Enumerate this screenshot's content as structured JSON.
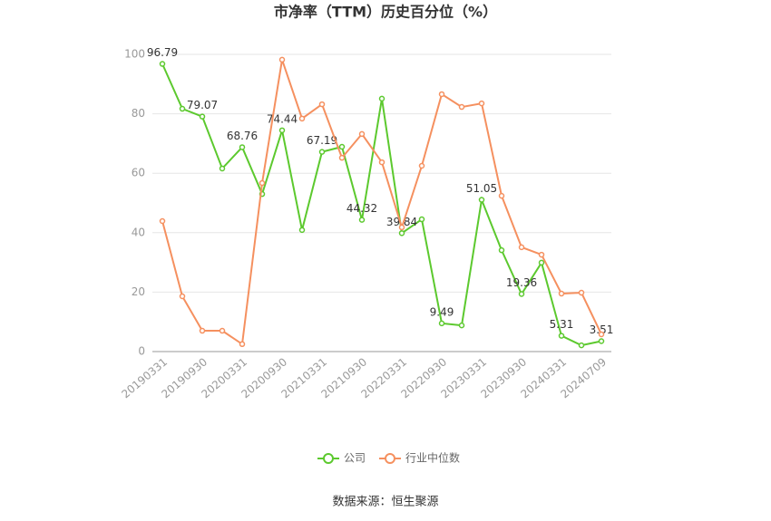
{
  "chart_data": {
    "type": "line",
    "title": "市净率（TTM）历史百分位（%）",
    "categories": [
      "20190331",
      null,
      "20190930",
      null,
      "20200331",
      null,
      "20200930",
      null,
      "20210331",
      null,
      "20210930",
      null,
      "20220331",
      null,
      "20220930",
      null,
      "20230331",
      null,
      "20230930",
      null,
      "20240331",
      null,
      "20240709"
    ],
    "series": [
      {
        "name": "公司",
        "color": "#5cc92e",
        "values": [
          96.79,
          81.7,
          79.07,
          61.6,
          68.76,
          53.0,
          74.44,
          40.9,
          67.19,
          68.9,
          44.32,
          85.1,
          39.84,
          44.5,
          9.49,
          8.8,
          51.05,
          34.1,
          19.36,
          29.9,
          5.31,
          2.1,
          3.51
        ],
        "value_labels": [
          "96.79",
          null,
          "79.07",
          null,
          "68.76",
          null,
          "74.44",
          null,
          "67.19",
          null,
          "44.32",
          null,
          "39.84",
          null,
          "9.49",
          null,
          "51.05",
          null,
          "19.36",
          null,
          "5.31",
          null,
          "3.51"
        ]
      },
      {
        "name": "行业中位数",
        "color": "#f5905f",
        "values": [
          43.9,
          18.6,
          7.0,
          7.0,
          2.5,
          56.7,
          98.2,
          78.4,
          83.2,
          65.2,
          73.2,
          63.7,
          41.8,
          62.5,
          86.6,
          82.3,
          83.5,
          52.4,
          35.1,
          32.6,
          19.5,
          19.8,
          5.8
        ]
      }
    ],
    "ylim": [
      0,
      100
    ],
    "yticks": [
      0,
      20,
      40,
      60,
      80,
      100
    ],
    "grid": true,
    "source": "数据来源：恒生聚源"
  }
}
